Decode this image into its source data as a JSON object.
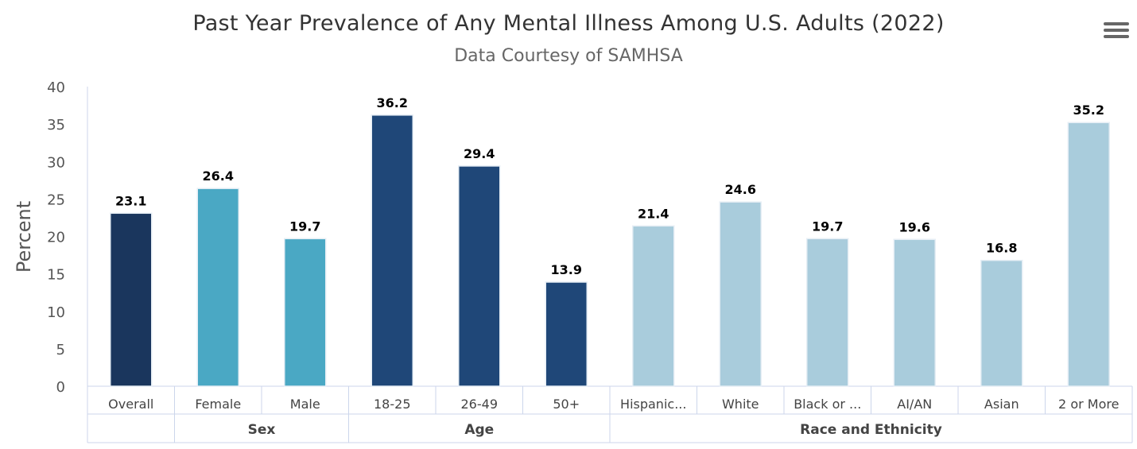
{
  "chart_data": {
    "type": "bar",
    "title": "Past Year Prevalence of Any Mental Illness Among U.S. Adults (2022)",
    "subtitle": "Data Courtesy of SAMHSA",
    "ylabel": "Percent",
    "ylim": [
      0,
      40
    ],
    "yticks": [
      "0",
      "5",
      "10",
      "15",
      "20",
      "25",
      "30",
      "35",
      "40"
    ],
    "grid": false,
    "categories": [
      "Overall",
      "Female",
      "Male",
      "18-25",
      "26-49",
      "50+",
      "Hispanic...",
      "White",
      "Black or ...",
      "AI/AN",
      "Asian",
      "2 or More"
    ],
    "values": [
      23.1,
      26.4,
      19.7,
      36.2,
      29.4,
      13.9,
      21.4,
      24.6,
      19.7,
      19.6,
      16.8,
      35.2
    ],
    "groups": [
      {
        "label": "",
        "start": 0,
        "count": 1,
        "color": "#1a365d"
      },
      {
        "label": "Sex",
        "start": 1,
        "count": 2,
        "color": "#4aa8c4"
      },
      {
        "label": "Age",
        "start": 3,
        "count": 3,
        "color": "#1f4778"
      },
      {
        "label": "Race and Ethnicity",
        "start": 6,
        "count": 6,
        "color": "#a9ccdc"
      }
    ],
    "data_labels": [
      "23.1",
      "26.4",
      "19.7",
      "36.2",
      "29.4",
      "13.9",
      "21.4",
      "24.6",
      "19.7",
      "19.6",
      "16.8",
      "35.2"
    ]
  },
  "menu": {
    "icon": "hamburger-menu-icon"
  }
}
